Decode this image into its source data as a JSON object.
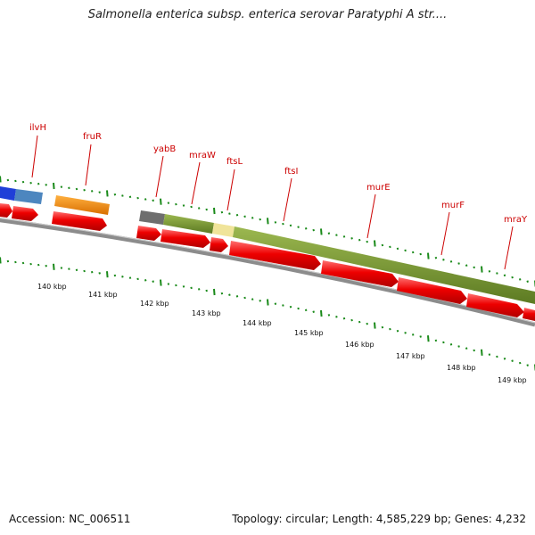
{
  "title": "Salmonella enterica subsp. enterica serovar Paratyphi A str....",
  "footer": {
    "accession": "Accession: NC_006511",
    "summary": "Topology: circular; Length: 4,585,229 bp; Genes: 4,232"
  },
  "colors": {
    "gene_label": "#cc0000",
    "cds_red": "#ee0000",
    "tick_green": "#1a8a1a",
    "backbone": "#8c8c8c",
    "olive": "#6e8b2a",
    "orange": "#f08a10",
    "blue": "#1f3fd8",
    "steel_blue": "#4d86bf",
    "gray_block": "#6e6e6e",
    "pale_yellow": "#f0e49a"
  },
  "gene_labels": [
    "ilvH",
    "fruR",
    "yabB",
    "mraW",
    "ftsL",
    "ftsI",
    "murE",
    "murF",
    "mraY"
  ],
  "kbp_ticks": [
    "140 kbp",
    "141 kbp",
    "142 kbp",
    "143 kbp",
    "144 kbp",
    "145 kbp",
    "146 kbp",
    "147 kbp",
    "148 kbp",
    "149 kbp"
  ]
}
